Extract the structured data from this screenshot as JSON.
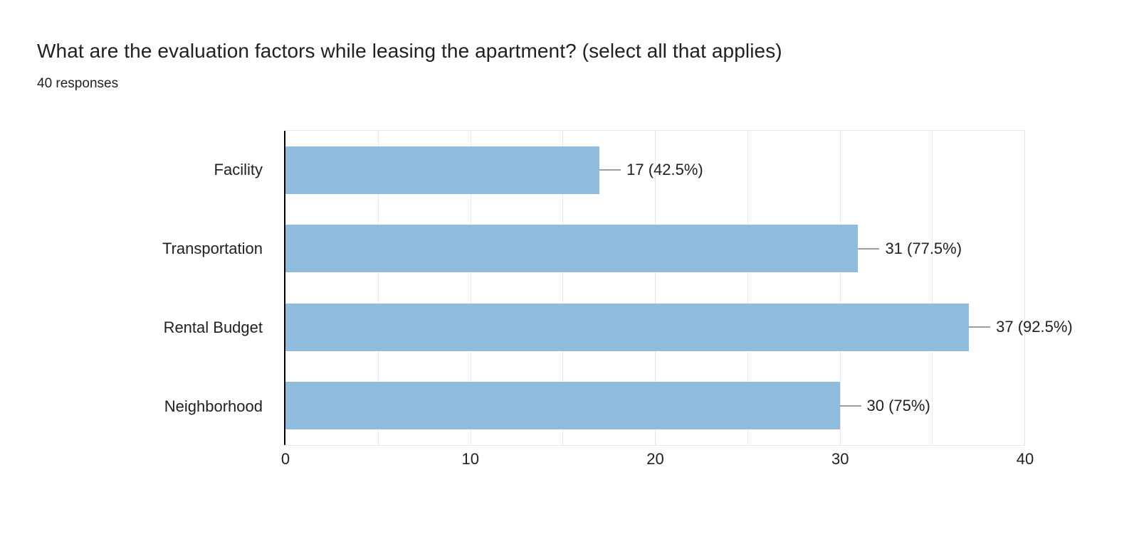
{
  "header": {
    "title": "What are the evaluation factors while leasing the apartment? (select all that applies)",
    "subtitle": "40 responses"
  },
  "chart_data": {
    "type": "bar",
    "orientation": "horizontal",
    "title": "What are the evaluation factors while leasing the apartment? (select all that applies)",
    "subtitle": "40 responses",
    "total_responses": 40,
    "categories": [
      "Facility",
      "Transportation",
      "Rental Budget",
      "Neighborhood"
    ],
    "values": [
      17,
      31,
      37,
      30
    ],
    "percentages": [
      42.5,
      77.5,
      92.5,
      75
    ],
    "labels": [
      "17 (42.5%)",
      "31 (77.5%)",
      "37 (92.5%)",
      "30 (75%)"
    ],
    "xlim": [
      0,
      40
    ],
    "x_ticks": [
      "0",
      "10",
      "20",
      "30",
      "40"
    ],
    "x_tick_values": [
      0,
      10,
      20,
      30,
      40
    ],
    "gridline_step": 5,
    "grid": true,
    "legend": "none"
  },
  "colors": {
    "bar": "#8fbcdc",
    "text": "#202124",
    "grid": "#e9e9e9",
    "connector": "#9e9e9e",
    "axis": "#000000",
    "background": "#ffffff"
  }
}
